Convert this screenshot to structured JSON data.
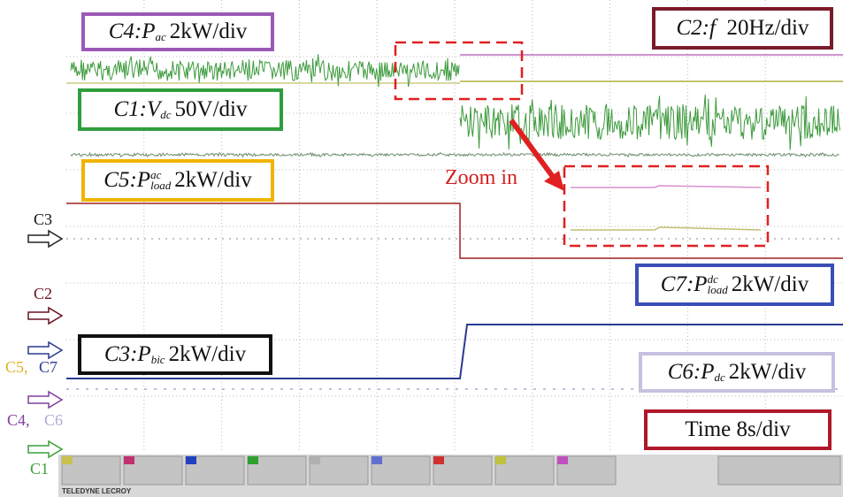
{
  "labels": [
    {
      "channel": "C4:",
      "symbol": "P",
      "sub": "ac",
      "scale": "2kW/div"
    },
    {
      "channel": "C2:",
      "symbol": "f",
      "scale": "20Hz/div"
    },
    {
      "channel": "C1:",
      "symbol": "V",
      "sub": "dc",
      "scale": "50V/div"
    },
    {
      "channel": "C5:",
      "symbol": "P",
      "sup": "ac",
      "sub": "load",
      "scale": "2kW/div"
    },
    {
      "channel": "C7:",
      "symbol": "P",
      "sup": "dc",
      "sub": "load",
      "scale": "2kW/div"
    },
    {
      "channel": "C3:",
      "symbol": "P",
      "sub": "bic",
      "scale": "2kW/div"
    },
    {
      "channel": "C6:",
      "symbol": "P",
      "sub": "dc",
      "scale": "2kW/div"
    }
  ],
  "time": "Time 8s/div",
  "zoom": "Zoom in",
  "markers": [
    "C3",
    "C2",
    "C5,",
    "C7",
    "C4,",
    "C6",
    "C1"
  ],
  "footer": {
    "brand": "TELEDYNE LECROY"
  }
}
